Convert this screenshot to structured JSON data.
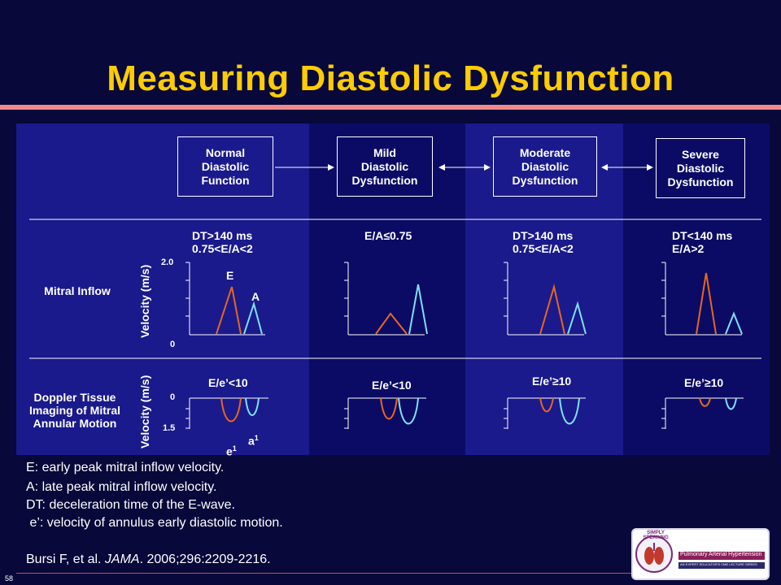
{
  "title": "Measuring Diastolic Dysfunction",
  "stages": [
    {
      "label": "Normal\nDiastolic\nFunction"
    },
    {
      "label": "Mild\nDiastolic\nDysfunction"
    },
    {
      "label": "Moderate\nDiastolic\nDysfunction"
    },
    {
      "label": "Severe\nDiastolic\nDysfunction"
    }
  ],
  "rows": {
    "mitral": "Mitral Inflow",
    "doppler": "Doppler Tissue\nImaging of Mitral\nAnnular Motion"
  },
  "axis": {
    "velocity": "Velocity (m/s)",
    "mitral_top": "2.0",
    "mitral_bottom": "0",
    "tissue_top": "0",
    "tissue_bottom": "1.5"
  },
  "mitral_criteria": [
    "DT>140 ms\n0.75<E/A<2",
    "E/A≤0.75",
    "DT>140 ms\n0.75<E/A<2",
    "DT<140 ms\n    E/A>2"
  ],
  "tissue_criteria": [
    "E/e’<10",
    "E/e’<10",
    "E/e’≥10",
    "E/e’≥10"
  ],
  "wave_labels": {
    "E": "E",
    "A": "A",
    "e": "e",
    "a": "a",
    "sup": "1"
  },
  "colors": {
    "orange": "#e8661e",
    "cyan": "#7fe0f0",
    "panel_light": "#1a1a8c",
    "panel_dark": "#0b0b66"
  },
  "notes": [
    "E: early peak mitral inflow velocity.",
    "A: late peak mitral inflow velocity.",
    "DT: deceleration time of the E-wave.",
    " e’: velocity of annulus early diastolic motion."
  ],
  "citation": {
    "prefix": "Bursi F, et al. ",
    "journal": "JAMA",
    "suffix": ". 2006;296:2209-2216."
  },
  "slide_number": "58",
  "logo": {
    "brand": "SIMPLY SPEAKING",
    "topic": "Pulmonary Arterial Hypertension",
    "tagline": "AN EXPERT EDUCATOR'S CME LECTURE SERIES"
  }
}
